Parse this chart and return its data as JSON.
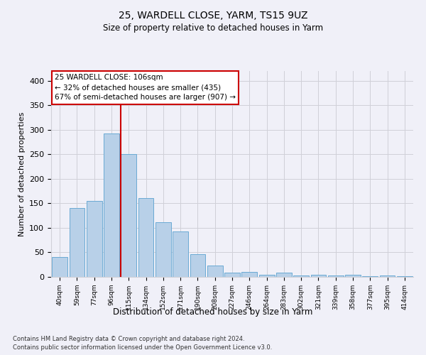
{
  "title1": "25, WARDELL CLOSE, YARM, TS15 9UZ",
  "title2": "Size of property relative to detached houses in Yarm",
  "xlabel": "Distribution of detached houses by size in Yarm",
  "ylabel": "Number of detached properties",
  "bar_labels": [
    "40sqm",
    "59sqm",
    "77sqm",
    "96sqm",
    "115sqm",
    "134sqm",
    "152sqm",
    "171sqm",
    "190sqm",
    "208sqm",
    "227sqm",
    "246sqm",
    "264sqm",
    "283sqm",
    "302sqm",
    "321sqm",
    "339sqm",
    "358sqm",
    "377sqm",
    "395sqm",
    "414sqm"
  ],
  "bar_values": [
    41,
    140,
    155,
    293,
    251,
    161,
    112,
    92,
    46,
    23,
    8,
    10,
    5,
    8,
    3,
    4,
    3,
    4,
    2,
    3,
    2
  ],
  "bar_color": "#b8d0e8",
  "bar_edgecolor": "#6aaad4",
  "property_label": "25 WARDELL CLOSE: 106sqm",
  "annotation_line1": "← 32% of detached houses are smaller (435)",
  "annotation_line2": "67% of semi-detached houses are larger (907) →",
  "vline_color": "#cc0000",
  "vline_x_index": 3.55,
  "annotation_box_color": "#ffffff",
  "annotation_box_edgecolor": "#cc0000",
  "footer1": "Contains HM Land Registry data © Crown copyright and database right 2024.",
  "footer2": "Contains public sector information licensed under the Open Government Licence v3.0.",
  "ylim": [
    0,
    420
  ],
  "yticks": [
    0,
    50,
    100,
    150,
    200,
    250,
    300,
    350,
    400
  ],
  "grid_color": "#d0d0d8",
  "bg_color": "#f0f0f8"
}
